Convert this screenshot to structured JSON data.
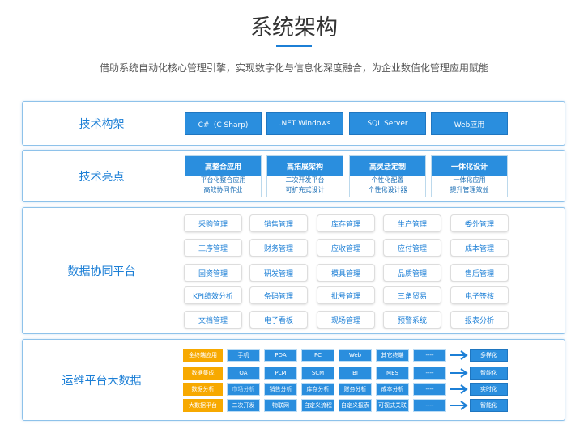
{
  "header": {
    "title": "系统架构",
    "subtitle": "借助系统自动化核心管理引擎，实现数字化与信息化深度融合，为企业数值化管理应用赋能"
  },
  "colors": {
    "accent": "#2a8ede",
    "orange": "#f7a900"
  },
  "tech_stack": {
    "label": "技术构架",
    "items": [
      "C#（C Sharp)",
      ".NET Windows",
      "SQL Server",
      "Web应用"
    ]
  },
  "highlights": {
    "label": "技术亮点",
    "cards": [
      {
        "title": "高整合应用",
        "lines": [
          "平台化整合应用",
          "高效协同作业"
        ]
      },
      {
        "title": "高拓展架构",
        "lines": [
          "二次开发平台",
          "可扩充式设计"
        ]
      },
      {
        "title": "高灵活定制",
        "lines": [
          "个性化配置",
          "个性化设计器"
        ]
      },
      {
        "title": "一体化设计",
        "lines": [
          "一体化应用",
          "提升管理效益"
        ]
      }
    ]
  },
  "platform": {
    "label": "数据协同平台",
    "modules": [
      "采购管理",
      "销售管理",
      "库存管理",
      "生产管理",
      "委外管理",
      "工序管理",
      "财务管理",
      "应收管理",
      "应付管理",
      "成本管理",
      "固资管理",
      "研发管理",
      "模具管理",
      "品质管理",
      "售后管理",
      "KPI绩效分析",
      "条码管理",
      "批号管理",
      "三角贸易",
      "电子签核",
      "文档管理",
      "电子看板",
      "现场管理",
      "预警系统",
      "报表分析"
    ]
  },
  "ops": {
    "label": "运维平台大数据",
    "rows": [
      {
        "category": "全终端应用",
        "items": [
          "手机",
          "PDA",
          "PC",
          "Web",
          "其它终端",
          "----"
        ],
        "result": "多样化"
      },
      {
        "category": "数据集成",
        "items": [
          "OA",
          "PLM",
          "SCM",
          "BI",
          "MES",
          "----"
        ],
        "result": "智能化"
      },
      {
        "category": "数据分析",
        "items": [
          "市场分析",
          "销售分析",
          "库存分析",
          "财务分析",
          "成本分析",
          "----"
        ],
        "result": "实时化"
      },
      {
        "category": "大数据平台",
        "items": [
          "二次开发",
          "物联网",
          "自定义流程",
          "自定义报表",
          "可视式关联",
          "----"
        ],
        "result": "智能化"
      }
    ]
  }
}
